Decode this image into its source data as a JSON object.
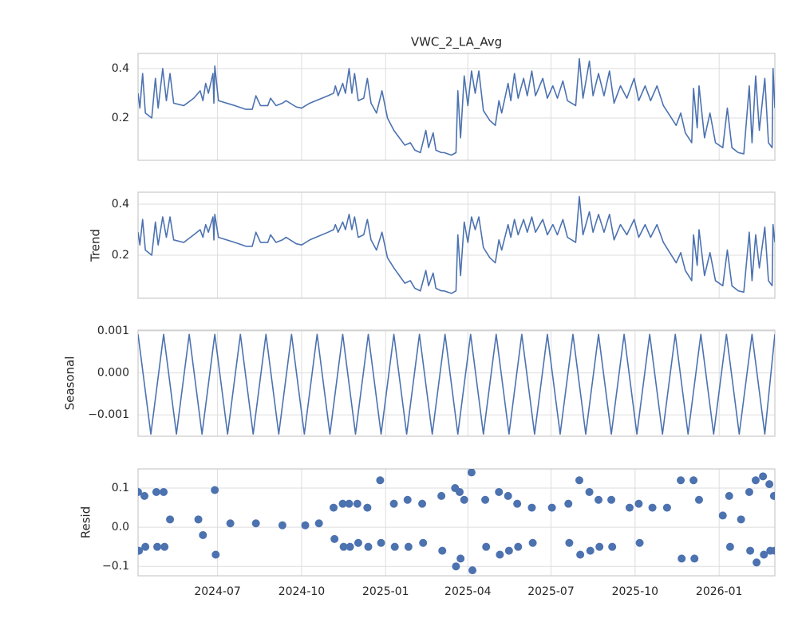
{
  "chart_data": [
    {
      "type": "line",
      "title": "VWC_2_LA_Avg",
      "color": "#4c72b0",
      "grid": true,
      "x": [
        "2024-04-05",
        "2024-04-07",
        "2024-04-10",
        "2024-04-13",
        "2024-04-20",
        "2024-04-24",
        "2024-04-27",
        "2024-05-02",
        "2024-05-06",
        "2024-05-10",
        "2024-05-14",
        "2024-05-25",
        "2024-06-05",
        "2024-06-12",
        "2024-06-15",
        "2024-06-18",
        "2024-06-21",
        "2024-06-26",
        "2024-06-27",
        "2024-06-28",
        "2024-07-02",
        "2024-07-20",
        "2024-08-01",
        "2024-08-08",
        "2024-08-12",
        "2024-08-17",
        "2024-08-25",
        "2024-08-28",
        "2024-09-03",
        "2024-09-10",
        "2024-09-14",
        "2024-09-25",
        "2024-10-01",
        "2024-10-10",
        "2024-10-30",
        "2024-11-05",
        "2024-11-07",
        "2024-11-10",
        "2024-11-15",
        "2024-11-18",
        "2024-11-22",
        "2024-11-25",
        "2024-11-28",
        "2024-12-02",
        "2024-12-08",
        "2024-12-12",
        "2024-12-16",
        "2024-12-22",
        "2024-12-28",
        "2025-01-03",
        "2025-01-10",
        "2025-01-18",
        "2025-01-22",
        "2025-01-28",
        "2025-02-02",
        "2025-02-08",
        "2025-02-14",
        "2025-02-17",
        "2025-02-22",
        "2025-02-25",
        "2025-03-03",
        "2025-03-06",
        "2025-03-14",
        "2025-03-19",
        "2025-03-21",
        "2025-03-24",
        "2025-03-28",
        "2025-04-01",
        "2025-04-05",
        "2025-04-09",
        "2025-04-13",
        "2025-04-18",
        "2025-04-25",
        "2025-05-01",
        "2025-05-05",
        "2025-05-08",
        "2025-05-15",
        "2025-05-18",
        "2025-05-22",
        "2025-05-26",
        "2025-06-01",
        "2025-06-05",
        "2025-06-10",
        "2025-06-14",
        "2025-06-22",
        "2025-06-27",
        "2025-07-03",
        "2025-07-08",
        "2025-07-14",
        "2025-07-19",
        "2025-07-28",
        "2025-08-01",
        "2025-08-05",
        "2025-08-12",
        "2025-08-16",
        "2025-08-22",
        "2025-08-28",
        "2025-09-03",
        "2025-09-08",
        "2025-09-15",
        "2025-09-22",
        "2025-09-30",
        "2025-10-05",
        "2025-10-12",
        "2025-10-18",
        "2025-10-25",
        "2025-11-01",
        "2025-11-08",
        "2025-11-15",
        "2025-11-20",
        "2025-11-25",
        "2025-12-02",
        "2025-12-04",
        "2025-12-08",
        "2025-12-10",
        "2025-12-16",
        "2025-12-22",
        "2025-12-28",
        "2026-01-05",
        "2026-01-10",
        "2026-01-15",
        "2026-01-22",
        "2026-01-28",
        "2026-02-03",
        "2026-02-06",
        "2026-02-10",
        "2026-02-14",
        "2026-02-20",
        "2026-02-24",
        "2026-02-28",
        "2026-03-01",
        "2026-03-03"
      ],
      "values": [
        0.3,
        0.24,
        0.38,
        0.22,
        0.2,
        0.36,
        0.24,
        0.4,
        0.27,
        0.38,
        0.26,
        0.25,
        0.28,
        0.31,
        0.27,
        0.34,
        0.3,
        0.38,
        0.26,
        0.41,
        0.27,
        0.25,
        0.235,
        0.235,
        0.29,
        0.25,
        0.25,
        0.28,
        0.25,
        0.26,
        0.27,
        0.245,
        0.24,
        0.26,
        0.29,
        0.3,
        0.33,
        0.29,
        0.34,
        0.3,
        0.4,
        0.3,
        0.38,
        0.27,
        0.28,
        0.36,
        0.26,
        0.22,
        0.31,
        0.2,
        0.15,
        0.11,
        0.09,
        0.1,
        0.07,
        0.06,
        0.15,
        0.08,
        0.14,
        0.07,
        0.06,
        0.06,
        0.05,
        0.06,
        0.31,
        0.12,
        0.37,
        0.25,
        0.39,
        0.3,
        0.39,
        0.23,
        0.19,
        0.17,
        0.27,
        0.22,
        0.34,
        0.27,
        0.38,
        0.28,
        0.36,
        0.29,
        0.39,
        0.29,
        0.36,
        0.28,
        0.33,
        0.28,
        0.35,
        0.27,
        0.25,
        0.44,
        0.28,
        0.43,
        0.29,
        0.38,
        0.29,
        0.39,
        0.26,
        0.33,
        0.28,
        0.36,
        0.27,
        0.33,
        0.27,
        0.33,
        0.25,
        0.21,
        0.17,
        0.22,
        0.14,
        0.1,
        0.32,
        0.16,
        0.33,
        0.12,
        0.22,
        0.1,
        0.08,
        0.24,
        0.08,
        0.06,
        0.055,
        0.33,
        0.1,
        0.37,
        0.15,
        0.36,
        0.1,
        0.08,
        0.4,
        0.24
      ],
      "ylim": [
        0.029,
        0.461
      ],
      "yticks": [
        0.2,
        0.4
      ]
    },
    {
      "type": "line",
      "ylabel": "Trend",
      "color": "#4c72b0",
      "grid": true,
      "x": [
        "2024-04-05",
        "2024-04-07",
        "2024-04-10",
        "2024-04-13",
        "2024-04-20",
        "2024-04-24",
        "2024-04-27",
        "2024-05-02",
        "2024-05-06",
        "2024-05-10",
        "2024-05-14",
        "2024-05-25",
        "2024-06-05",
        "2024-06-12",
        "2024-06-15",
        "2024-06-18",
        "2024-06-21",
        "2024-06-26",
        "2024-06-27",
        "2024-06-28",
        "2024-07-02",
        "2024-07-20",
        "2024-08-01",
        "2024-08-08",
        "2024-08-12",
        "2024-08-17",
        "2024-08-25",
        "2024-08-28",
        "2024-09-03",
        "2024-09-10",
        "2024-09-14",
        "2024-09-25",
        "2024-10-01",
        "2024-10-10",
        "2024-10-30",
        "2024-11-05",
        "2024-11-07",
        "2024-11-10",
        "2024-11-15",
        "2024-11-18",
        "2024-11-22",
        "2024-11-25",
        "2024-11-28",
        "2024-12-02",
        "2024-12-08",
        "2024-12-12",
        "2024-12-16",
        "2024-12-22",
        "2024-12-28",
        "2025-01-03",
        "2025-01-10",
        "2025-01-18",
        "2025-01-22",
        "2025-01-28",
        "2025-02-02",
        "2025-02-08",
        "2025-02-14",
        "2025-02-17",
        "2025-02-22",
        "2025-02-25",
        "2025-03-03",
        "2025-03-06",
        "2025-03-14",
        "2025-03-19",
        "2025-03-21",
        "2025-03-24",
        "2025-03-28",
        "2025-04-01",
        "2025-04-05",
        "2025-04-09",
        "2025-04-13",
        "2025-04-18",
        "2025-04-25",
        "2025-05-01",
        "2025-05-05",
        "2025-05-08",
        "2025-05-15",
        "2025-05-18",
        "2025-05-22",
        "2025-05-26",
        "2025-06-01",
        "2025-06-05",
        "2025-06-10",
        "2025-06-14",
        "2025-06-22",
        "2025-06-27",
        "2025-07-03",
        "2025-07-08",
        "2025-07-14",
        "2025-07-19",
        "2025-07-28",
        "2025-08-01",
        "2025-08-05",
        "2025-08-12",
        "2025-08-16",
        "2025-08-22",
        "2025-08-28",
        "2025-09-03",
        "2025-09-08",
        "2025-09-15",
        "2025-09-22",
        "2025-09-30",
        "2025-10-05",
        "2025-10-12",
        "2025-10-18",
        "2025-10-25",
        "2025-11-01",
        "2025-11-08",
        "2025-11-15",
        "2025-11-20",
        "2025-11-25",
        "2025-12-02",
        "2025-12-04",
        "2025-12-08",
        "2025-12-10",
        "2025-12-16",
        "2025-12-22",
        "2025-12-28",
        "2026-01-05",
        "2026-01-10",
        "2026-01-15",
        "2026-01-22",
        "2026-01-28",
        "2026-02-03",
        "2026-02-06",
        "2026-02-10",
        "2026-02-14",
        "2026-02-20",
        "2026-02-24",
        "2026-02-28",
        "2026-03-01",
        "2026-03-03"
      ],
      "values": [
        0.29,
        0.24,
        0.34,
        0.22,
        0.2,
        0.33,
        0.24,
        0.35,
        0.27,
        0.35,
        0.26,
        0.25,
        0.28,
        0.3,
        0.27,
        0.32,
        0.29,
        0.35,
        0.26,
        0.36,
        0.27,
        0.25,
        0.235,
        0.235,
        0.29,
        0.25,
        0.25,
        0.28,
        0.25,
        0.26,
        0.27,
        0.245,
        0.24,
        0.26,
        0.29,
        0.3,
        0.32,
        0.29,
        0.33,
        0.3,
        0.36,
        0.3,
        0.35,
        0.27,
        0.28,
        0.34,
        0.26,
        0.22,
        0.29,
        0.19,
        0.15,
        0.11,
        0.09,
        0.1,
        0.07,
        0.06,
        0.14,
        0.08,
        0.13,
        0.07,
        0.06,
        0.06,
        0.05,
        0.06,
        0.28,
        0.12,
        0.33,
        0.25,
        0.35,
        0.3,
        0.35,
        0.23,
        0.19,
        0.17,
        0.26,
        0.22,
        0.32,
        0.27,
        0.34,
        0.28,
        0.34,
        0.29,
        0.35,
        0.29,
        0.34,
        0.28,
        0.32,
        0.28,
        0.34,
        0.27,
        0.25,
        0.43,
        0.28,
        0.37,
        0.29,
        0.36,
        0.29,
        0.36,
        0.26,
        0.32,
        0.28,
        0.34,
        0.27,
        0.32,
        0.27,
        0.32,
        0.25,
        0.21,
        0.17,
        0.21,
        0.14,
        0.1,
        0.28,
        0.16,
        0.3,
        0.12,
        0.21,
        0.1,
        0.08,
        0.22,
        0.08,
        0.06,
        0.055,
        0.29,
        0.1,
        0.28,
        0.15,
        0.31,
        0.1,
        0.08,
        0.32,
        0.25
      ],
      "ylim": [
        0.031,
        0.447
      ],
      "yticks": [
        0.2,
        0.4
      ]
    },
    {
      "type": "line",
      "ylabel": "Seasonal",
      "color": "#4c72b0",
      "grid": true,
      "x": [
        "2024-04-05",
        "2024-04-19",
        "2024-05-03",
        "2024-05-17",
        "2024-05-31",
        "2024-06-14",
        "2024-06-28",
        "2024-07-12",
        "2024-07-26",
        "2024-08-09",
        "2024-08-23",
        "2024-09-06",
        "2024-09-20",
        "2024-10-04",
        "2024-10-18",
        "2024-11-01",
        "2024-11-15",
        "2024-11-29",
        "2024-12-13",
        "2024-12-27",
        "2025-01-10",
        "2025-01-24",
        "2025-02-07",
        "2025-02-21",
        "2025-03-07",
        "2025-03-21",
        "2025-04-04",
        "2025-04-18",
        "2025-05-02",
        "2025-05-16",
        "2025-05-30",
        "2025-06-13",
        "2025-06-27",
        "2025-07-11",
        "2025-07-25",
        "2025-08-08",
        "2025-08-22",
        "2025-09-05",
        "2025-09-19",
        "2025-10-03",
        "2025-10-17",
        "2025-10-31",
        "2025-11-14",
        "2025-11-28",
        "2025-12-12",
        "2025-12-26",
        "2026-01-09",
        "2026-01-23",
        "2026-02-06",
        "2026-02-20",
        "2026-03-03"
      ],
      "values": [
        0.00092,
        -0.00146,
        0.00092,
        -0.00146,
        0.00092,
        -0.00146,
        0.00092,
        -0.00146,
        0.00092,
        -0.00146,
        0.00092,
        -0.00146,
        0.00092,
        -0.00146,
        0.00092,
        -0.00146,
        0.00092,
        -0.00146,
        0.00092,
        -0.00146,
        0.00092,
        -0.00146,
        0.00092,
        -0.00146,
        0.00092,
        -0.00146,
        0.00092,
        -0.00146,
        0.00092,
        -0.00146,
        0.00092,
        -0.00146,
        0.00092,
        -0.00146,
        0.00092,
        -0.00146,
        0.00092,
        -0.00146,
        0.00092,
        -0.00146,
        0.00092,
        -0.00146,
        0.00092,
        -0.00146,
        0.00092,
        -0.00146,
        0.00092,
        -0.00146,
        0.00092,
        -0.00146,
        0.00092
      ],
      "ylim": [
        -0.00151,
        0.00102
      ],
      "yticks": [
        {
          "value": -0.001,
          "label": "−0.001"
        },
        {
          "value": 0,
          "label": "0.000"
        },
        0.001
      ]
    },
    {
      "type": "scatter",
      "ylabel": "Resid",
      "color": "#4c72b0",
      "grid": true,
      "x": [
        "2024-04-05",
        "2024-04-06",
        "2024-04-12",
        "2024-04-13",
        "2024-04-25",
        "2024-04-26",
        "2024-05-03",
        "2024-05-04",
        "2024-05-10",
        "2024-06-10",
        "2024-06-15",
        "2024-06-28",
        "2024-06-29",
        "2024-07-15",
        "2024-08-12",
        "2024-09-10",
        "2024-10-05",
        "2024-10-20",
        "2024-11-05",
        "2024-11-06",
        "2024-11-15",
        "2024-11-16",
        "2024-11-22",
        "2024-11-23",
        "2024-12-01",
        "2024-12-02",
        "2024-12-12",
        "2024-12-13",
        "2024-12-26",
        "2024-12-27",
        "2025-01-10",
        "2025-01-11",
        "2025-01-25",
        "2025-01-26",
        "2025-02-10",
        "2025-02-11",
        "2025-03-03",
        "2025-03-04",
        "2025-03-18",
        "2025-03-19",
        "2025-03-23",
        "2025-03-24",
        "2025-03-28",
        "2025-04-05",
        "2025-04-06",
        "2025-04-20",
        "2025-04-21",
        "2025-05-05",
        "2025-05-06",
        "2025-05-15",
        "2025-05-16",
        "2025-05-25",
        "2025-05-26",
        "2025-06-10",
        "2025-06-11",
        "2025-07-02",
        "2025-07-20",
        "2025-07-21",
        "2025-08-01",
        "2025-08-02",
        "2025-08-12",
        "2025-08-13",
        "2025-08-22",
        "2025-08-23",
        "2025-09-05",
        "2025-09-06",
        "2025-09-25",
        "2025-10-05",
        "2025-10-06",
        "2025-10-20",
        "2025-11-05",
        "2025-11-20",
        "2025-11-21",
        "2025-12-04",
        "2025-12-05",
        "2025-12-10",
        "2026-01-05",
        "2026-01-12",
        "2026-01-13",
        "2026-01-25",
        "2026-02-03",
        "2026-02-04",
        "2026-02-10",
        "2026-02-11",
        "2026-02-18",
        "2026-02-19",
        "2026-02-25",
        "2026-02-26",
        "2026-03-02",
        "2026-03-03"
      ],
      "values": [
        0.09,
        -0.06,
        0.08,
        -0.05,
        0.09,
        -0.05,
        0.09,
        -0.05,
        0.02,
        0.02,
        -0.02,
        0.095,
        -0.07,
        0.01,
        0.01,
        0.005,
        0.005,
        0.01,
        0.05,
        -0.03,
        0.06,
        -0.05,
        0.06,
        -0.05,
        0.06,
        -0.04,
        0.05,
        -0.05,
        0.12,
        -0.04,
        0.06,
        -0.05,
        0.07,
        -0.05,
        0.06,
        -0.04,
        0.08,
        -0.06,
        0.1,
        -0.1,
        0.09,
        -0.08,
        0.07,
        0.14,
        -0.11,
        0.07,
        -0.05,
        0.09,
        -0.07,
        0.08,
        -0.06,
        0.06,
        -0.05,
        0.05,
        -0.04,
        0.05,
        0.06,
        -0.04,
        0.12,
        -0.07,
        0.09,
        -0.06,
        0.07,
        -0.05,
        0.07,
        -0.05,
        0.05,
        0.06,
        -0.04,
        0.05,
        0.05,
        0.12,
        -0.08,
        0.12,
        -0.08,
        0.07,
        0.03,
        0.08,
        -0.05,
        0.02,
        0.09,
        -0.06,
        0.12,
        -0.09,
        0.13,
        -0.07,
        0.11,
        -0.06,
        0.08,
        -0.06
      ],
      "ylim": [
        -0.124,
        0.149
      ],
      "yticks": [
        {
          "value": -0.1,
          "label": "−0.1"
        },
        {
          "value": 0,
          "label": "0.0"
        },
        0.1
      ],
      "xlim": [
        "2024-04-05",
        "2026-03-03"
      ],
      "xticks": [
        {
          "value": "2024-07-01",
          "label": "2024-07"
        },
        {
          "value": "2024-10-01",
          "label": "2024-10"
        },
        {
          "value": "2025-01-01",
          "label": "2025-01"
        },
        {
          "value": "2025-04-01",
          "label": "2025-04"
        },
        {
          "value": "2025-07-01",
          "label": "2025-07"
        },
        {
          "value": "2025-10-01",
          "label": "2025-10"
        },
        {
          "value": "2026-01-01",
          "label": "2026-01"
        }
      ]
    }
  ]
}
